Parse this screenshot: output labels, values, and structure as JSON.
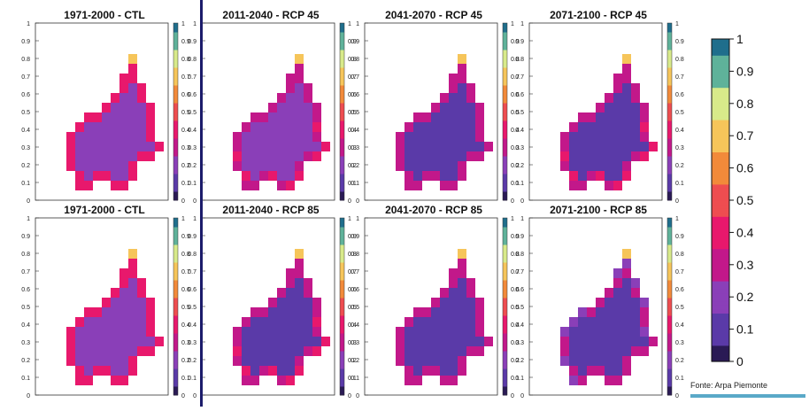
{
  "source_note": "Fonte: Arpa Piemonte",
  "axis_ticks": [
    "0",
    "0.1",
    "0.2",
    "0.3",
    "0.4",
    "0.5",
    "0.6",
    "0.7",
    "0.8",
    "0.9",
    "1"
  ],
  "colorbar_ticks": [
    "0",
    "0.1",
    "0.2",
    "0.3",
    "0.4",
    "0.5",
    "0.6",
    "0.7",
    "0.8",
    "0.9",
    "1"
  ],
  "colormap": [
    "#2a1a55",
    "#5a3aa8",
    "#8a3fb8",
    "#c2188a",
    "#e8186c",
    "#ee4d50",
    "#f28a3a",
    "#f6c55a",
    "#d8ea8a",
    "#5fb29a",
    "#1f6e8c"
  ],
  "panels": [
    {
      "title": "1971-2000 - CTL",
      "row": 0,
      "col": 0,
      "level": 0.22
    },
    {
      "title": "2011-2040 - RCP 45",
      "row": 0,
      "col": 1,
      "level": 0.15
    },
    {
      "title": "2041-2070 - RCP 45",
      "row": 0,
      "col": 2,
      "level": 0.12
    },
    {
      "title": "2071-2100 - RCP 45",
      "row": 0,
      "col": 3,
      "level": 0.13
    },
    {
      "title": "1971-2000 - CTL",
      "row": 1,
      "col": 0,
      "level": 0.22
    },
    {
      "title": "2011-2040 - RCP 85",
      "row": 1,
      "col": 1,
      "level": 0.13
    },
    {
      "title": "2041-2070 - RCP 85",
      "row": 1,
      "col": 2,
      "level": 0.11
    },
    {
      "title": "2071-2100 - RCP 85",
      "row": 1,
      "col": 3,
      "level": 0.08
    }
  ]
}
